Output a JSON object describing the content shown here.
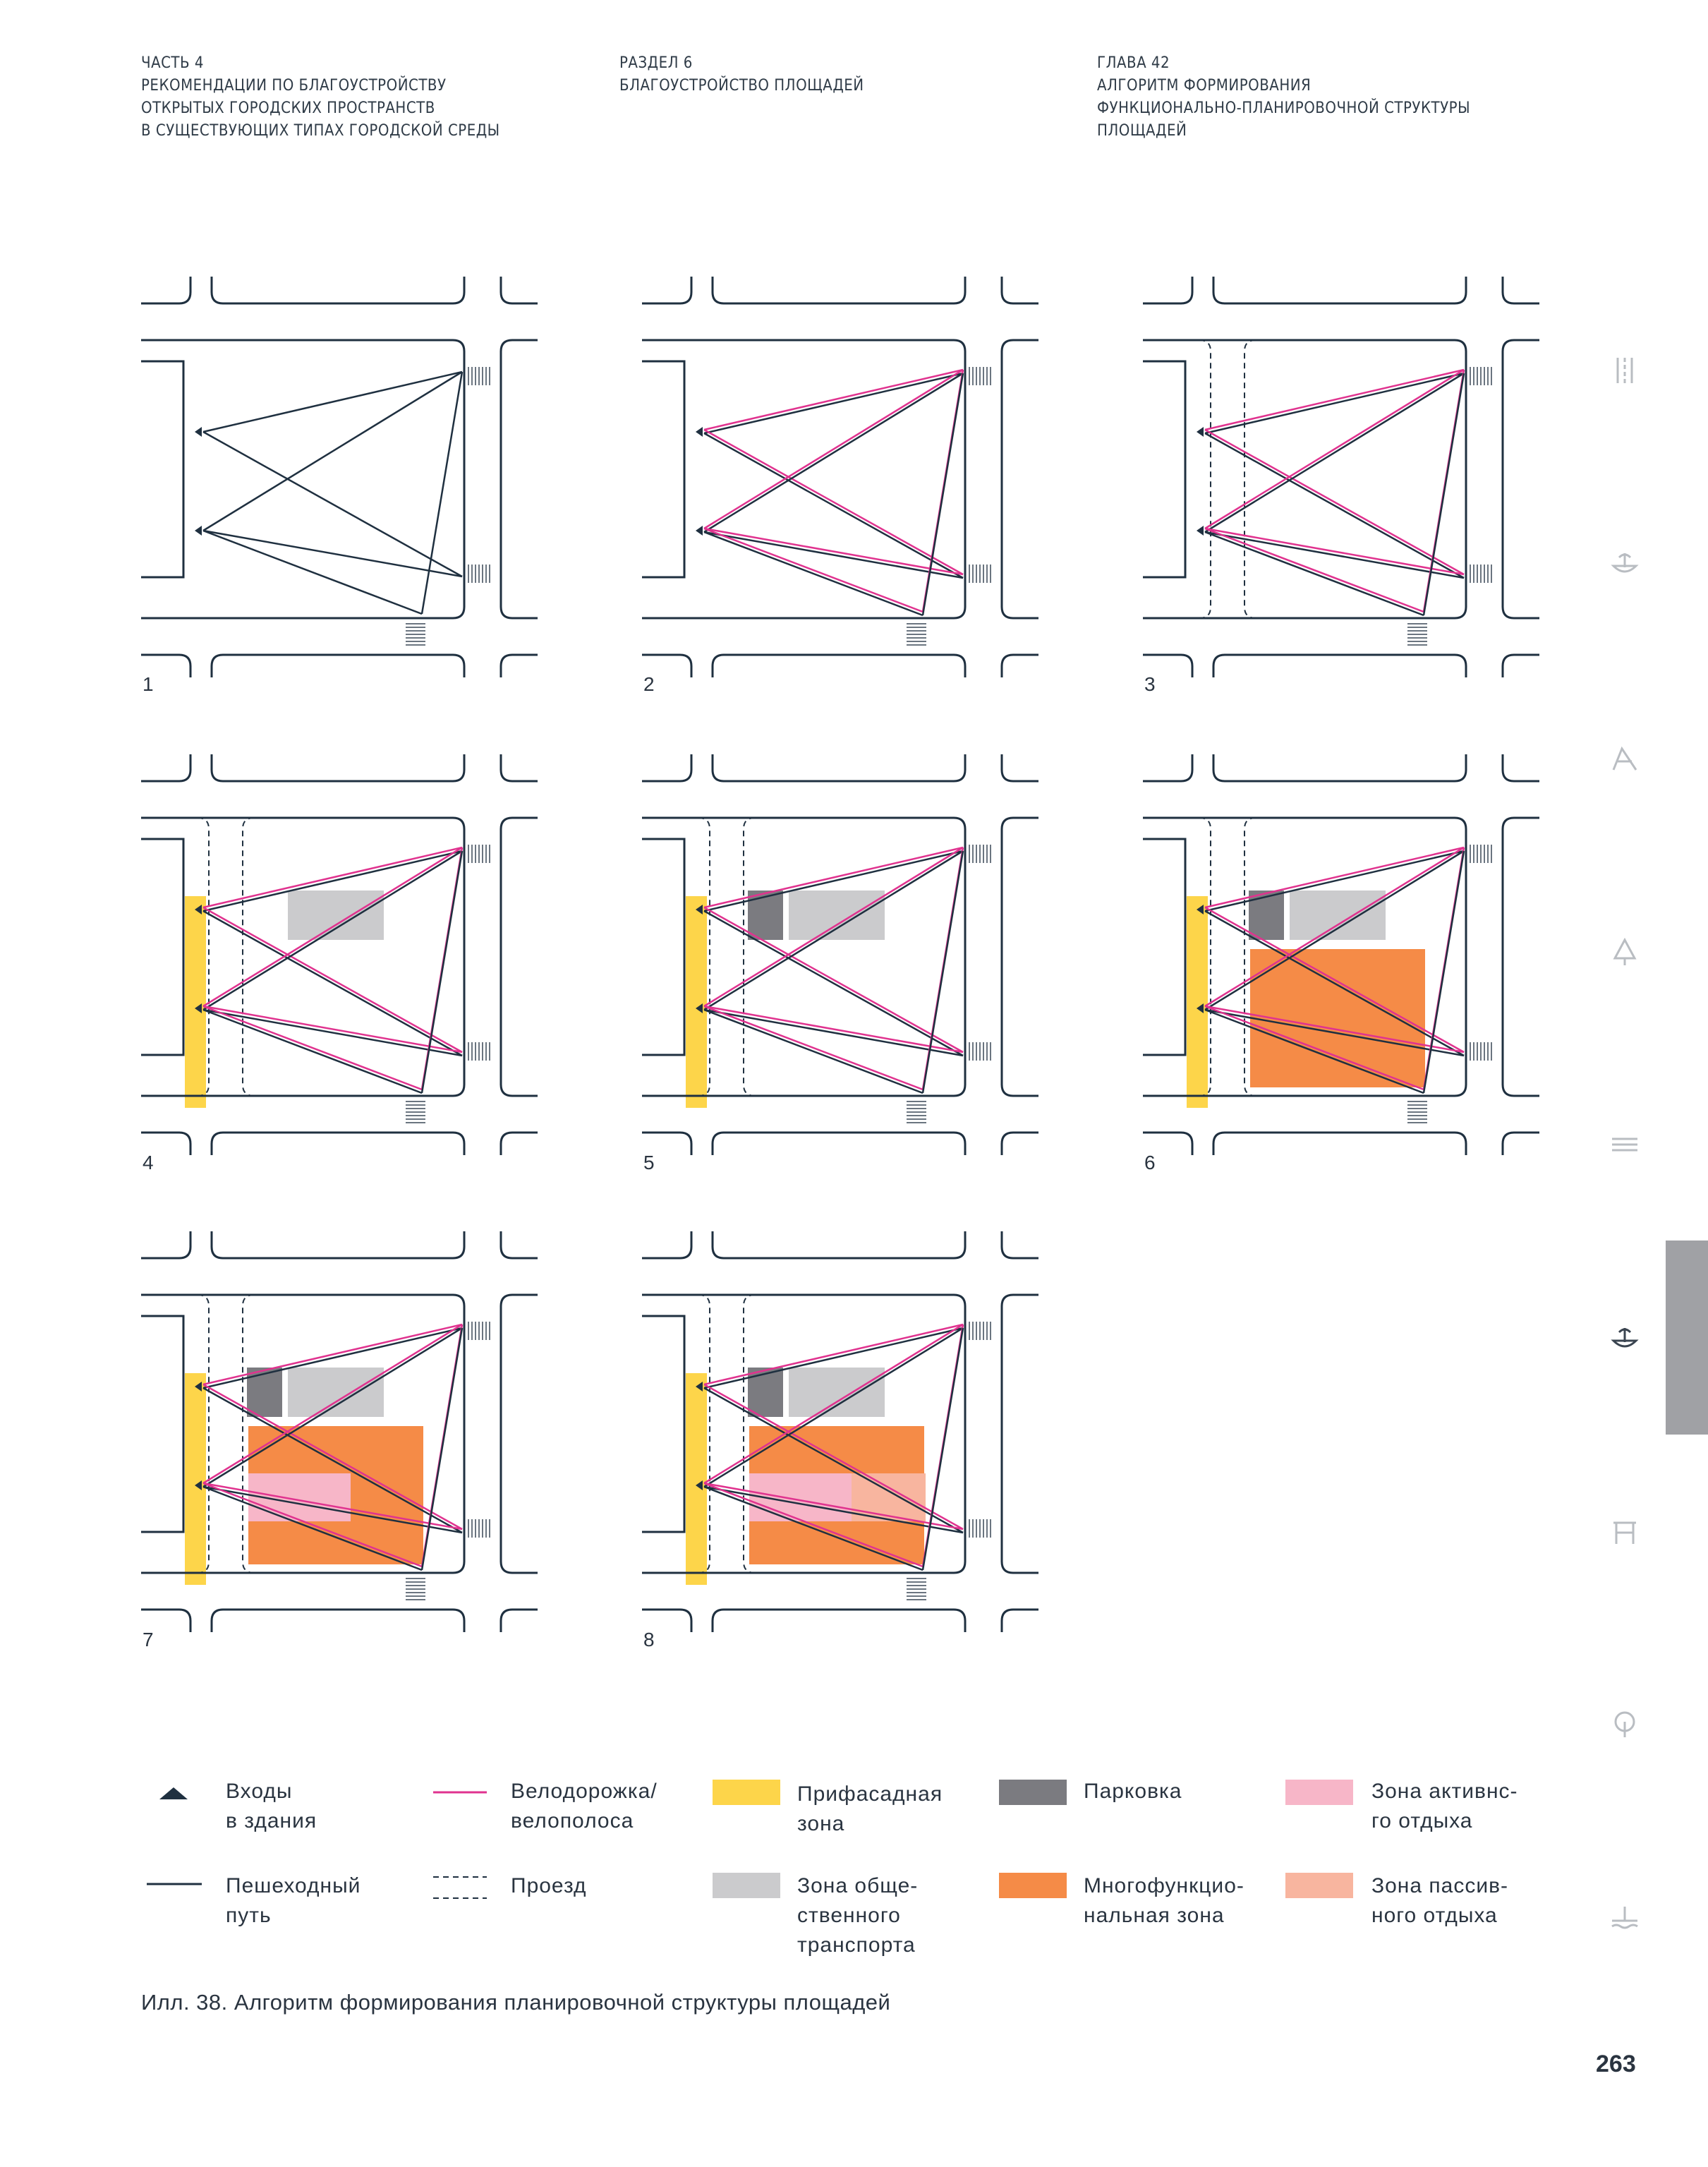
{
  "header": {
    "part": [
      "ЧАСТЬ 4",
      "РЕКОМЕНДАЦИИ ПО БЛАГОУСТРОЙСТВУ",
      "ОТКРЫТЫХ ГОРОДСКИХ ПРОСТРАНСТВ",
      "В СУЩЕСТВУЮЩИХ ТИПАХ ГОРОДСКОЙ СРЕДЫ"
    ],
    "section": [
      "РАЗДЕЛ 6",
      "БЛАГОУСТРОЙСТВО ПЛОЩАДЕЙ"
    ],
    "chapter": [
      "ГЛАВА 42",
      "АЛГОРИТМ ФОРМИРОВАНИЯ",
      "ФУНКЦИОНАЛЬНО-ПЛАНИРОВОЧНОЙ СТРУКТУРЫ",
      "ПЛОЩАДЕЙ"
    ]
  },
  "diagrams": [
    {
      "number": "1",
      "bike": false,
      "drive": false,
      "facade": false,
      "transport": false,
      "parking": false,
      "multi": false,
      "active": false,
      "passive": false
    },
    {
      "number": "2",
      "bike": true,
      "drive": false,
      "facade": false,
      "transport": false,
      "parking": false,
      "multi": false,
      "active": false,
      "passive": false
    },
    {
      "number": "3",
      "bike": true,
      "drive": true,
      "facade": false,
      "transport": false,
      "parking": false,
      "multi": false,
      "active": false,
      "passive": false
    },
    {
      "number": "4",
      "bike": true,
      "drive": true,
      "facade": true,
      "transport": true,
      "parking": false,
      "multi": false,
      "active": false,
      "passive": false
    },
    {
      "number": "5",
      "bike": true,
      "drive": true,
      "facade": true,
      "transport": true,
      "parking": true,
      "multi": false,
      "active": false,
      "passive": false
    },
    {
      "number": "6",
      "bike": true,
      "drive": true,
      "facade": true,
      "transport": true,
      "parking": true,
      "multi": true,
      "active": false,
      "passive": false
    },
    {
      "number": "7",
      "bike": true,
      "drive": true,
      "facade": true,
      "transport": true,
      "parking": true,
      "multi": true,
      "active": true,
      "passive": false
    },
    {
      "number": "8",
      "bike": true,
      "drive": true,
      "facade": true,
      "transport": true,
      "parking": true,
      "multi": true,
      "active": true,
      "passive": true
    }
  ],
  "legend": {
    "entries": [
      "Входы\nв здания",
      "Велодорожка/\nвелополоса",
      "Прифасадная\nзона",
      "Парковка",
      "Зона активнс-\nго отдыха",
      "Пешеходный\nпуть",
      "Проезд",
      "Зона обще-\nственного\nтранспорта",
      "Многофункцио-\nнальная зона",
      "Зона пассив-\nного отдыха"
    ]
  },
  "colors": {
    "line": "#1f3040",
    "bike": "#e0338f",
    "facade": "#fdd54a",
    "transport": "#cbcbcd",
    "parking": "#7b7b80",
    "multi": "#f58b47",
    "active": "#f7b6c8",
    "passive": "#f8b59f",
    "tab": "#a0a1a5",
    "side_icons": "#b9bdc2"
  },
  "side_icons": [
    "crossing-icon",
    "fountain-icon",
    "playground-icon",
    "tree-icon",
    "lines-icon",
    "fountain-icon",
    "bench-icon",
    "park-tree-icon",
    "waterfront-icon"
  ],
  "caption": "Илл. 38. Алгоритм формирования планировочной структуры площадей",
  "page_number": "263"
}
